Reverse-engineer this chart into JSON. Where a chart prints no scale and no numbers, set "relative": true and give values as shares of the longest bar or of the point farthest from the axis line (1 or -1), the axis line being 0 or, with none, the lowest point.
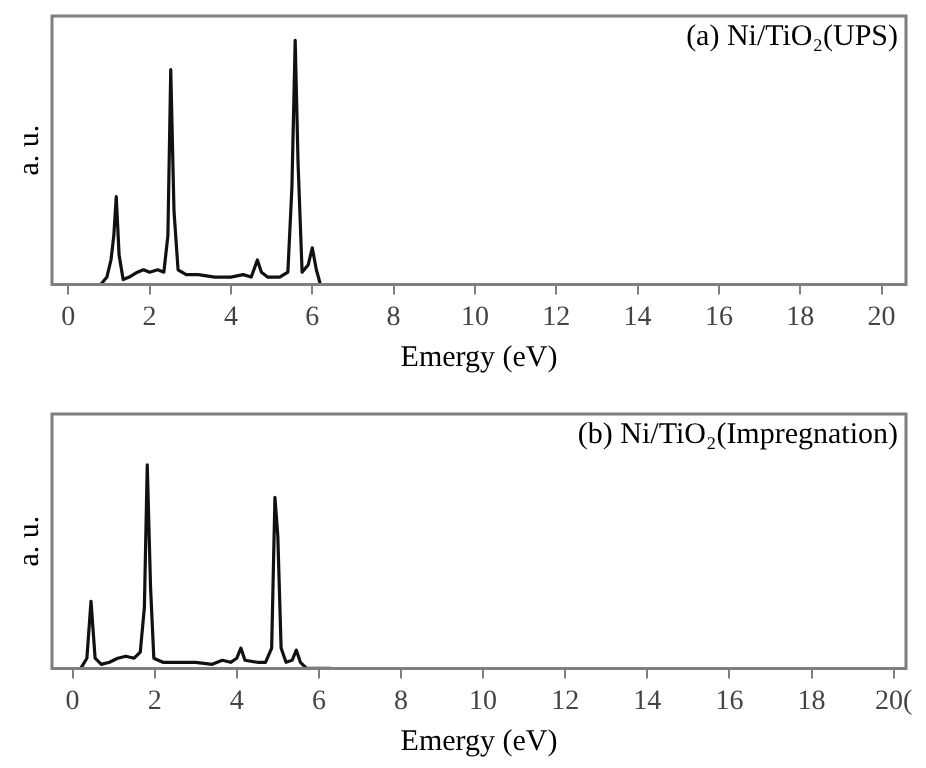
{
  "chart_data": [
    {
      "type": "line",
      "title": "(a) Ni/TiO₂(UPS)",
      "xlabel": "Emergy (eV)",
      "ylabel": "a. u.",
      "relative": true,
      "xlim": [
        -0.4,
        20.6
      ],
      "xticks": [
        0,
        2,
        4,
        6,
        8,
        10,
        12,
        14,
        16,
        18,
        20
      ],
      "grid": false,
      "legend": false,
      "marker": "none",
      "series": [
        {
          "color": "#111111",
          "x": [
            0.8,
            0.95,
            1.05,
            1.12,
            1.18,
            1.25,
            1.35,
            1.5,
            1.7,
            1.85,
            2.0,
            2.2,
            2.35,
            2.45,
            2.52,
            2.6,
            2.7,
            2.9,
            3.2,
            3.6,
            4.0,
            4.3,
            4.5,
            4.65,
            4.75,
            4.9,
            5.2,
            5.4,
            5.5,
            5.58,
            5.65,
            5.75,
            5.9,
            6.0,
            6.1,
            6.2
          ],
          "values": [
            0,
            0.03,
            0.1,
            0.2,
            0.36,
            0.12,
            0.02,
            0.03,
            0.05,
            0.06,
            0.05,
            0.06,
            0.05,
            0.2,
            0.88,
            0.3,
            0.06,
            0.04,
            0.04,
            0.03,
            0.03,
            0.04,
            0.03,
            0.1,
            0.05,
            0.03,
            0.03,
            0.05,
            0.4,
            1.0,
            0.5,
            0.05,
            0.08,
            0.15,
            0.06,
            0
          ]
        }
      ]
    },
    {
      "type": "line",
      "title": "(b) Ni/TiO₂(Impregnation)",
      "xlabel": "Emergy (eV)",
      "ylabel": "a. u.",
      "relative": true,
      "xlim": [
        -0.5,
        20.3
      ],
      "xticks": [
        0,
        2,
        4,
        6,
        8,
        10,
        12,
        14,
        16,
        18,
        {
          "value": 20,
          "label": "20("
        }
      ],
      "grid": false,
      "legend": false,
      "marker": "none",
      "series": [
        {
          "color": "#111111",
          "x": [
            0.2,
            0.35,
            0.45,
            0.55,
            0.7,
            0.9,
            1.1,
            1.3,
            1.5,
            1.65,
            1.75,
            1.82,
            1.9,
            1.98,
            2.2,
            2.6,
            3.0,
            3.4,
            3.65,
            3.85,
            4.0,
            4.1,
            4.2,
            4.5,
            4.7,
            4.85,
            4.93,
            5.0,
            5.08,
            5.2,
            5.35,
            5.45,
            5.55,
            5.7,
            6.3
          ],
          "values": [
            0,
            0.05,
            0.33,
            0.05,
            0.02,
            0.03,
            0.05,
            0.06,
            0.05,
            0.08,
            0.3,
            1.0,
            0.4,
            0.05,
            0.03,
            0.03,
            0.03,
            0.02,
            0.04,
            0.03,
            0.05,
            0.1,
            0.04,
            0.03,
            0.03,
            0.1,
            0.84,
            0.65,
            0.1,
            0.03,
            0.04,
            0.09,
            0.03,
            0,
            0
          ]
        }
      ]
    }
  ]
}
